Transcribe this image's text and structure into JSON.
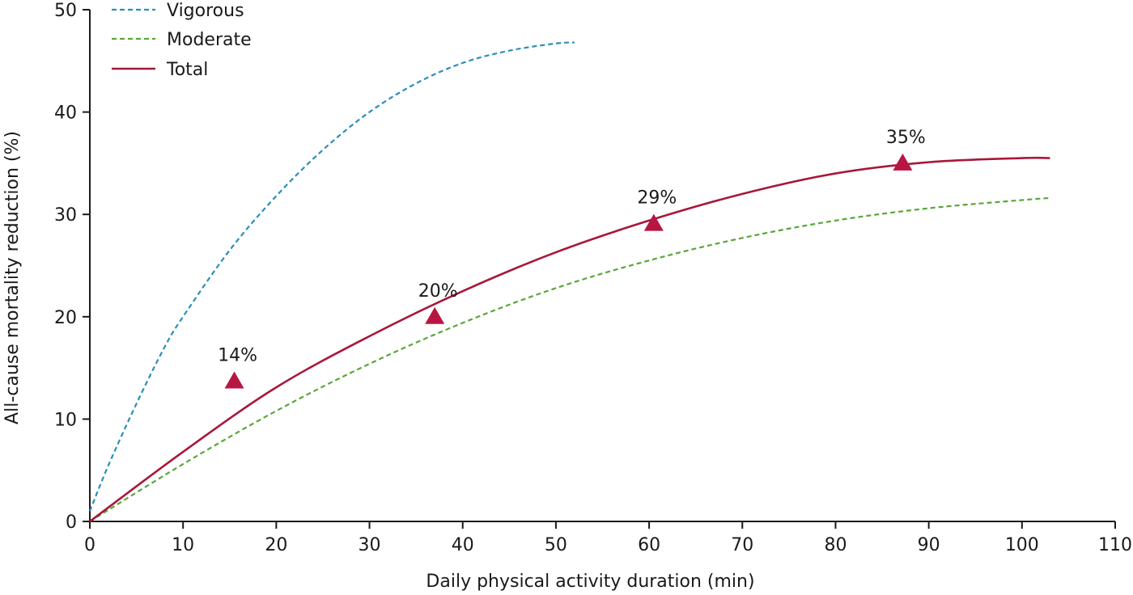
{
  "chart_data": {
    "type": "line",
    "title": "",
    "xlabel": "Daily physical activity duration (min)",
    "ylabel": "All-cause mortality reduction (%)",
    "xlim": [
      0,
      110
    ],
    "ylim": [
      0,
      50
    ],
    "xticks": [
      0,
      10,
      20,
      30,
      40,
      50,
      60,
      70,
      80,
      90,
      100,
      110
    ],
    "yticks": [
      0,
      10,
      20,
      30,
      40,
      50
    ],
    "grid": false,
    "legend_position": "top-left",
    "series": [
      {
        "name": "Vigorous",
        "style": "dashed",
        "color": "#2a8fb8",
        "x": [
          0,
          2,
          5,
          8,
          10,
          15,
          20,
          25,
          30,
          35,
          40,
          45,
          50,
          52
        ],
        "y": [
          1.0,
          5.5,
          11.5,
          17.0,
          20.0,
          26.5,
          31.8,
          36.3,
          40.0,
          42.8,
          44.8,
          46.0,
          46.7,
          46.8
        ]
      },
      {
        "name": "Moderate",
        "style": "dashed",
        "color": "#5aa63a",
        "x": [
          0,
          10,
          20,
          30,
          40,
          50,
          60,
          70,
          80,
          90,
          100,
          103
        ],
        "y": [
          0,
          5.6,
          10.8,
          15.4,
          19.4,
          22.8,
          25.5,
          27.7,
          29.4,
          30.6,
          31.4,
          31.6
        ]
      },
      {
        "name": "Total",
        "style": "solid",
        "color": "#a8173a",
        "x": [
          0,
          10,
          20,
          30,
          40,
          50,
          60,
          70,
          80,
          90,
          100,
          103
        ],
        "y": [
          0,
          6.8,
          13.1,
          18.1,
          22.5,
          26.3,
          29.4,
          32.0,
          34.0,
          35.1,
          35.5,
          35.5
        ]
      }
    ],
    "points": {
      "marker": "triangle",
      "color": "#b81642",
      "x": [
        15.5,
        37.0,
        60.5,
        87.2
      ],
      "y": [
        13.7,
        20.0,
        29.1,
        35.0
      ],
      "labels": [
        "14%",
        "20%",
        "29%",
        "35%"
      ]
    }
  }
}
